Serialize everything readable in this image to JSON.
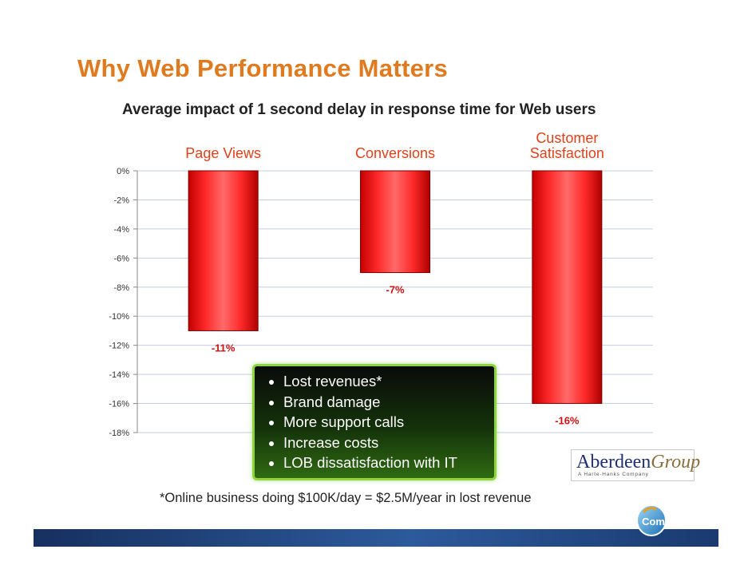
{
  "slide": {
    "title": "Why Web Performance Matters",
    "subtitle": "Average impact of 1 second delay in response time for Web users"
  },
  "chart_data": {
    "type": "bar",
    "title": "",
    "xlabel": "",
    "ylabel": "",
    "categories": [
      "Page Views",
      "Conversions",
      "Customer Satisfaction"
    ],
    "values": [
      -11,
      -7,
      -16
    ],
    "data_labels": [
      "-11%",
      "-7%",
      "-16%"
    ],
    "ylim": [
      -18,
      0
    ],
    "yticks": [
      0,
      -2,
      -4,
      -6,
      -8,
      -10,
      -12,
      -14,
      -16,
      -18
    ],
    "ytick_labels": [
      "0%",
      "-2%",
      "-4%",
      "-6%",
      "-8%",
      "-10%",
      "-12%",
      "-14%",
      "-16%",
      "-18%"
    ],
    "grid": true,
    "legend": "none",
    "bar_color": "#ee1111",
    "category_label_color": "#e0401a",
    "data_label_color": "#cc1111"
  },
  "callout": {
    "items": [
      "Lost revenues*",
      "Brand damage",
      "More support calls",
      "Increase costs",
      "LOB dissatisfaction with IT"
    ]
  },
  "footnote": "*Online business doing $100K/day = $2.5M/year in lost revenue",
  "logos": {
    "aberdeen_main": "Aberdeen",
    "aberdeen_group": "Group",
    "aberdeen_tagline": "A Harte-Hanks Company",
    "compuware": "Compuware"
  }
}
